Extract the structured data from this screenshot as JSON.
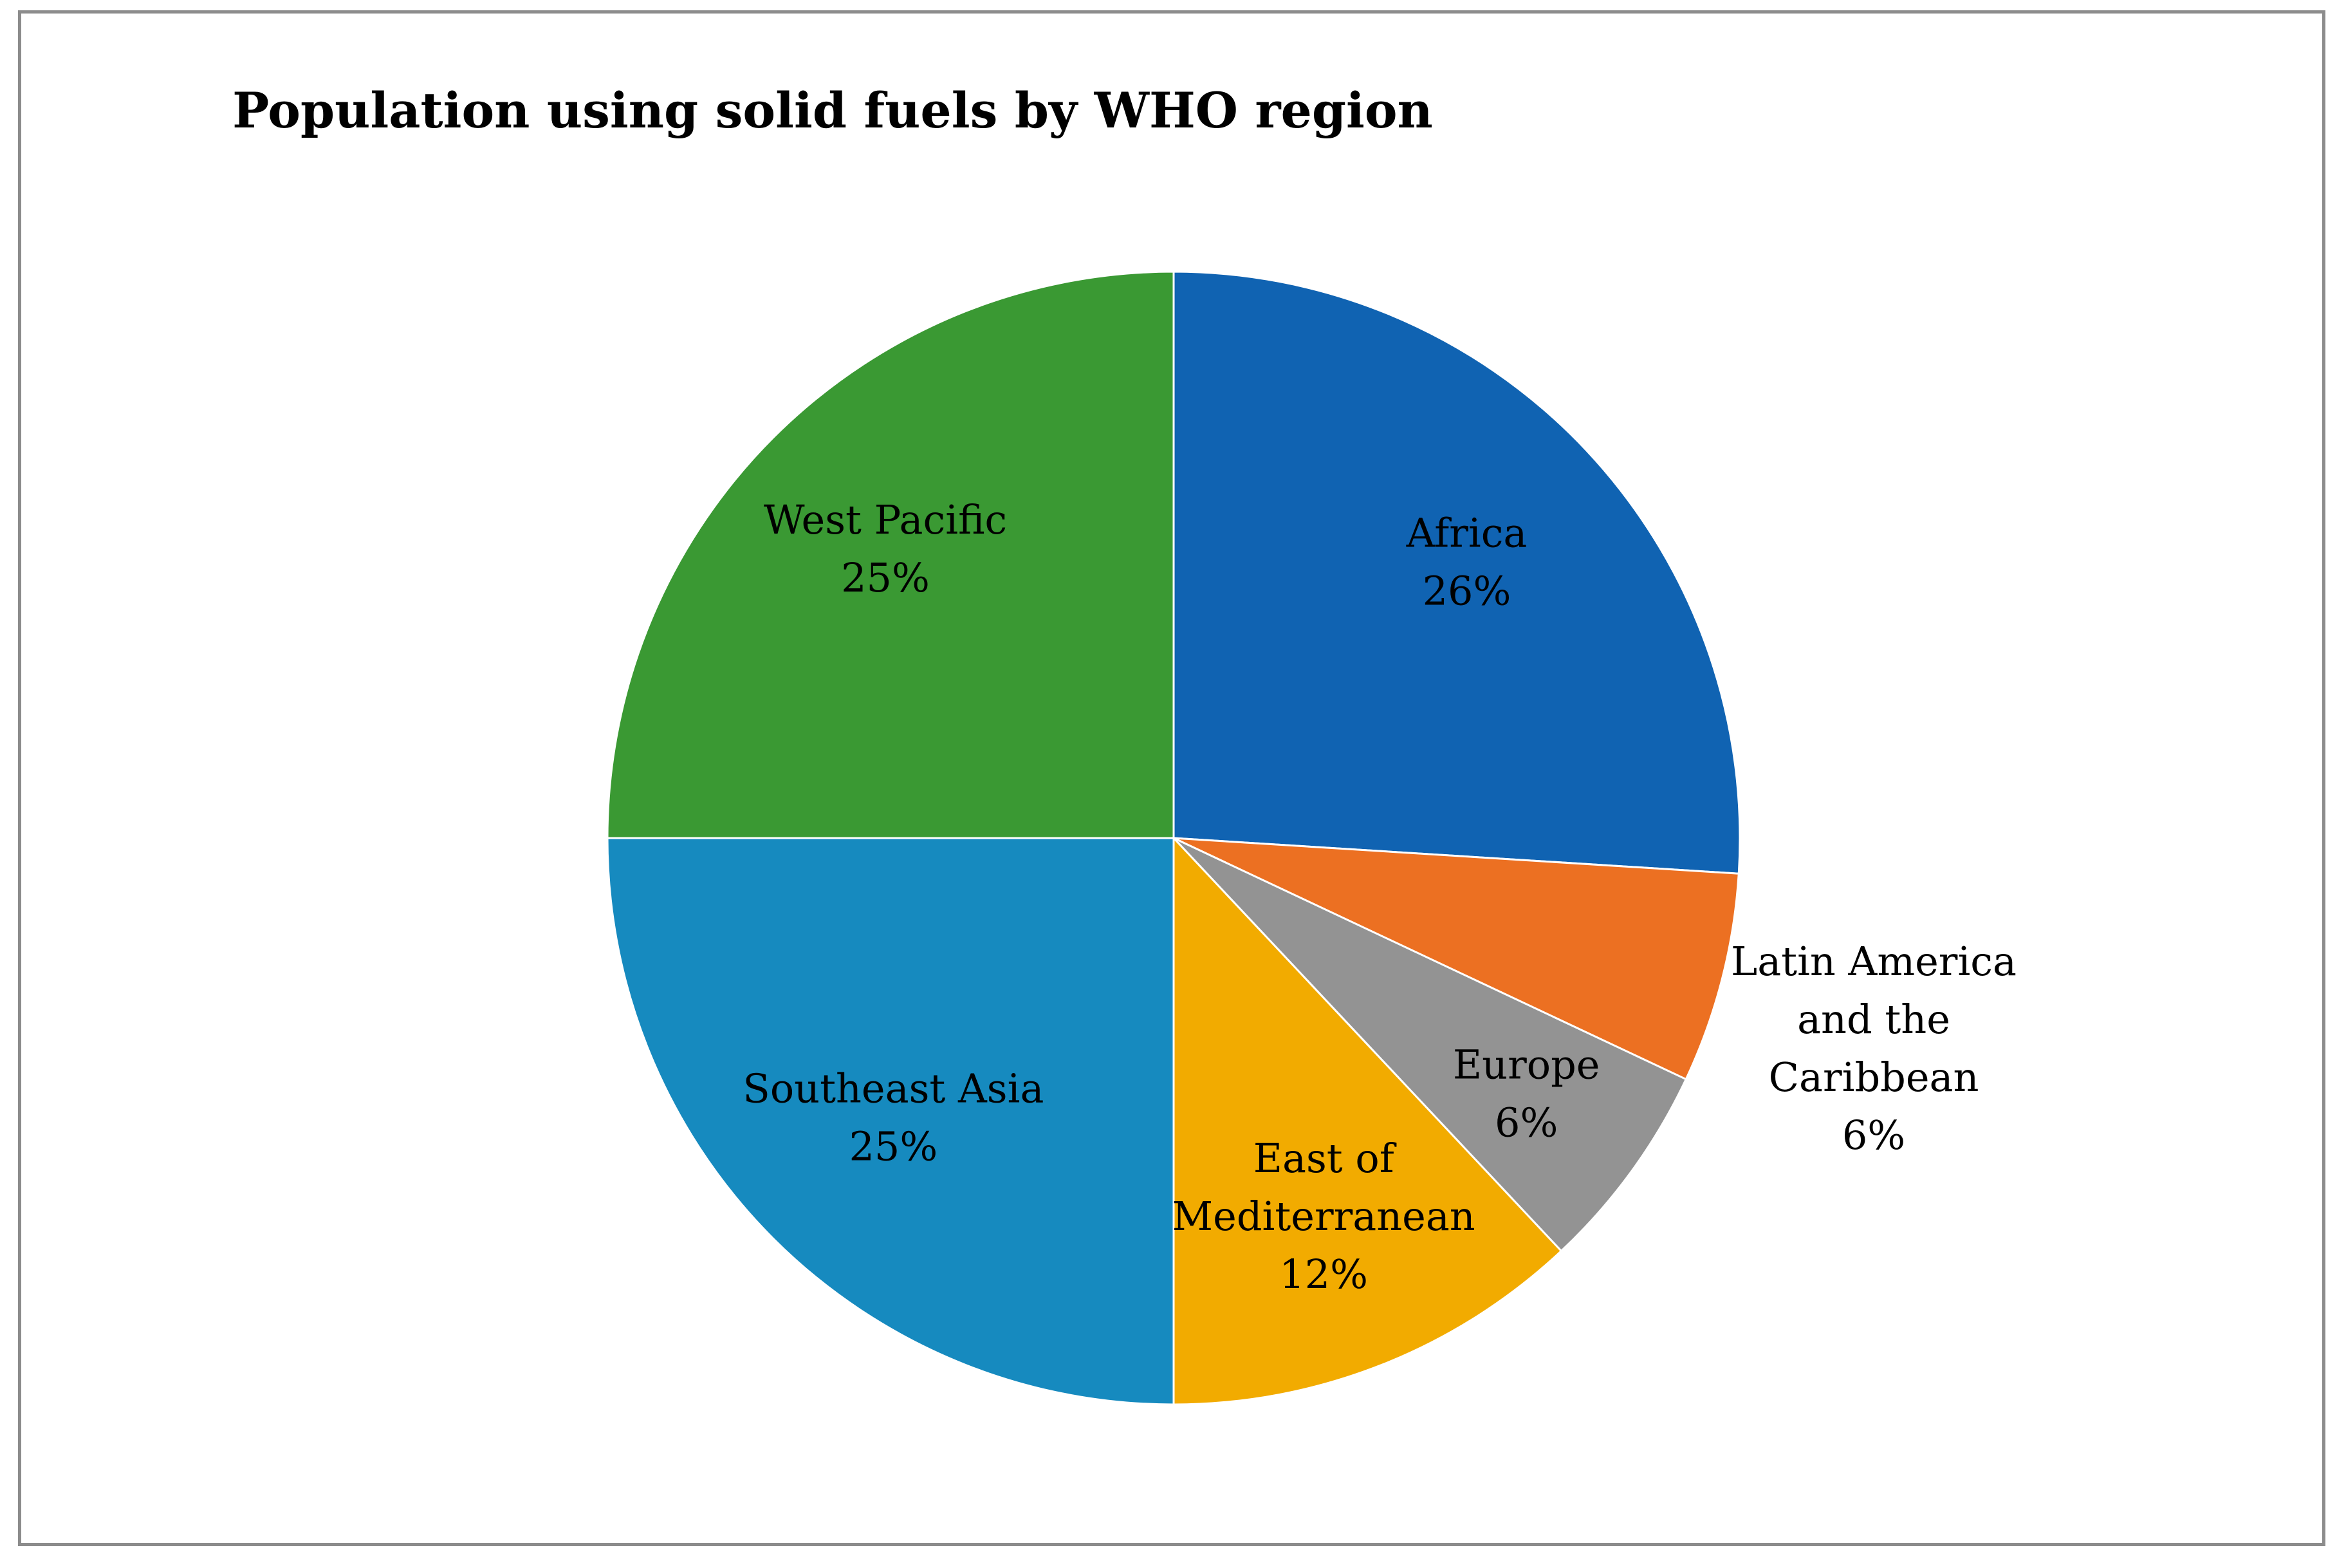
{
  "chart_data": {
    "type": "pie",
    "title": "Population using solid fuels by WHO region",
    "start_angle_deg": 0,
    "direction": "clockwise",
    "slices": [
      {
        "label": "Africa",
        "value": 26,
        "percent_label": "26%",
        "color": "#1063B2",
        "label_lines": [
          "Africa"
        ],
        "label_placement": "inside"
      },
      {
        "label": "Latin America and the Caribbean",
        "value": 6,
        "percent_label": "6%",
        "color": "#EC7022",
        "label_lines": [
          "Latin America",
          "and the",
          "Caribbean"
        ],
        "label_placement": "outside"
      },
      {
        "label": "Europe",
        "value": 6,
        "percent_label": "6%",
        "color": "#939393",
        "label_lines": [
          "Europe"
        ],
        "label_placement": "inside"
      },
      {
        "label": "East of Mediterranean",
        "value": 12,
        "percent_label": "12%",
        "color": "#F2AB00",
        "label_lines": [
          "East of",
          "Mediterranean"
        ],
        "label_placement": "inside"
      },
      {
        "label": "Southeast Asia",
        "value": 25,
        "percent_label": "25%",
        "color": "#168ABF",
        "label_lines": [
          "Southeast Asia"
        ],
        "label_placement": "inside"
      },
      {
        "label": "West Pacific",
        "value": 25,
        "percent_label": "25%",
        "color": "#3A9933",
        "label_lines": [
          "West Pacific"
        ],
        "label_placement": "inside"
      }
    ]
  }
}
